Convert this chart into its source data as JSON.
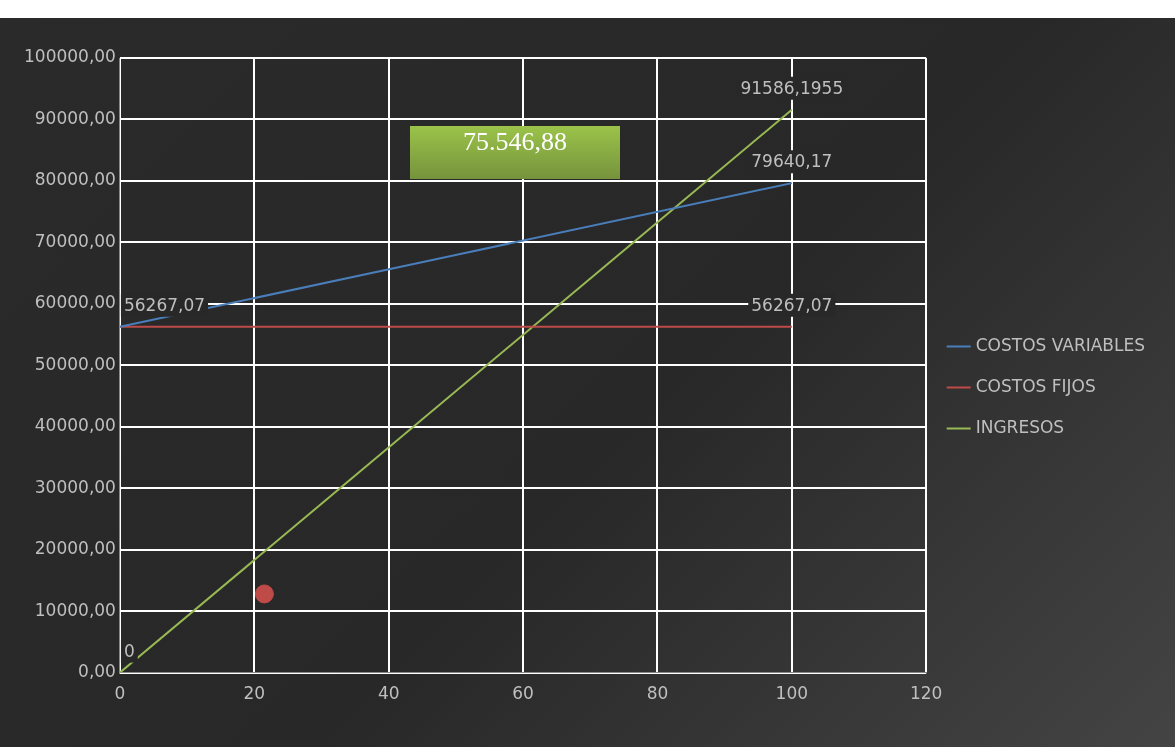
{
  "chart_data": {
    "type": "line",
    "x": [
      0,
      100
    ],
    "series": [
      {
        "name": "COSTOS VARIABLES",
        "color": "#4a7ebb",
        "values": [
          56267.07,
          79640.17
        ],
        "value_labels": [
          null,
          "79640,17"
        ]
      },
      {
        "name": "COSTOS FIJOS",
        "color": "#be4b48",
        "values": [
          56267.07,
          56267.07
        ],
        "value_labels": [
          "56267,07",
          "56267,07"
        ]
      },
      {
        "name": "INGRESOS",
        "color": "#98b954",
        "values": [
          0,
          91586.1955
        ],
        "value_labels": [
          "0",
          "91586,1955"
        ]
      },
      {
        "type": "scatter",
        "color": "#be4b48",
        "x": [
          21.5
        ],
        "values": [
          12800
        ],
        "marker": "circle"
      }
    ],
    "annotations": [
      "75.546,88"
    ],
    "xlim": [
      0,
      120
    ],
    "xticks": [
      0,
      20,
      40,
      60,
      80,
      100,
      120
    ],
    "ylim": [
      0,
      100000
    ],
    "yticks": [
      {
        "value": 0,
        "label": "0,00"
      },
      {
        "value": 10000,
        "label": "10000,00"
      },
      {
        "value": 20000,
        "label": "20000,00"
      },
      {
        "value": 30000,
        "label": "30000,00"
      },
      {
        "value": 40000,
        "label": "40000,00"
      },
      {
        "value": 50000,
        "label": "50000,00"
      },
      {
        "value": 60000,
        "label": "60000,00"
      },
      {
        "value": 70000,
        "label": "70000,00"
      },
      {
        "value": 80000,
        "label": "80000,00"
      },
      {
        "value": 90000,
        "label": "90000,00"
      },
      {
        "value": 100000,
        "label": "100000,00"
      }
    ],
    "grid": true,
    "legend": "right",
    "marker": "none"
  }
}
